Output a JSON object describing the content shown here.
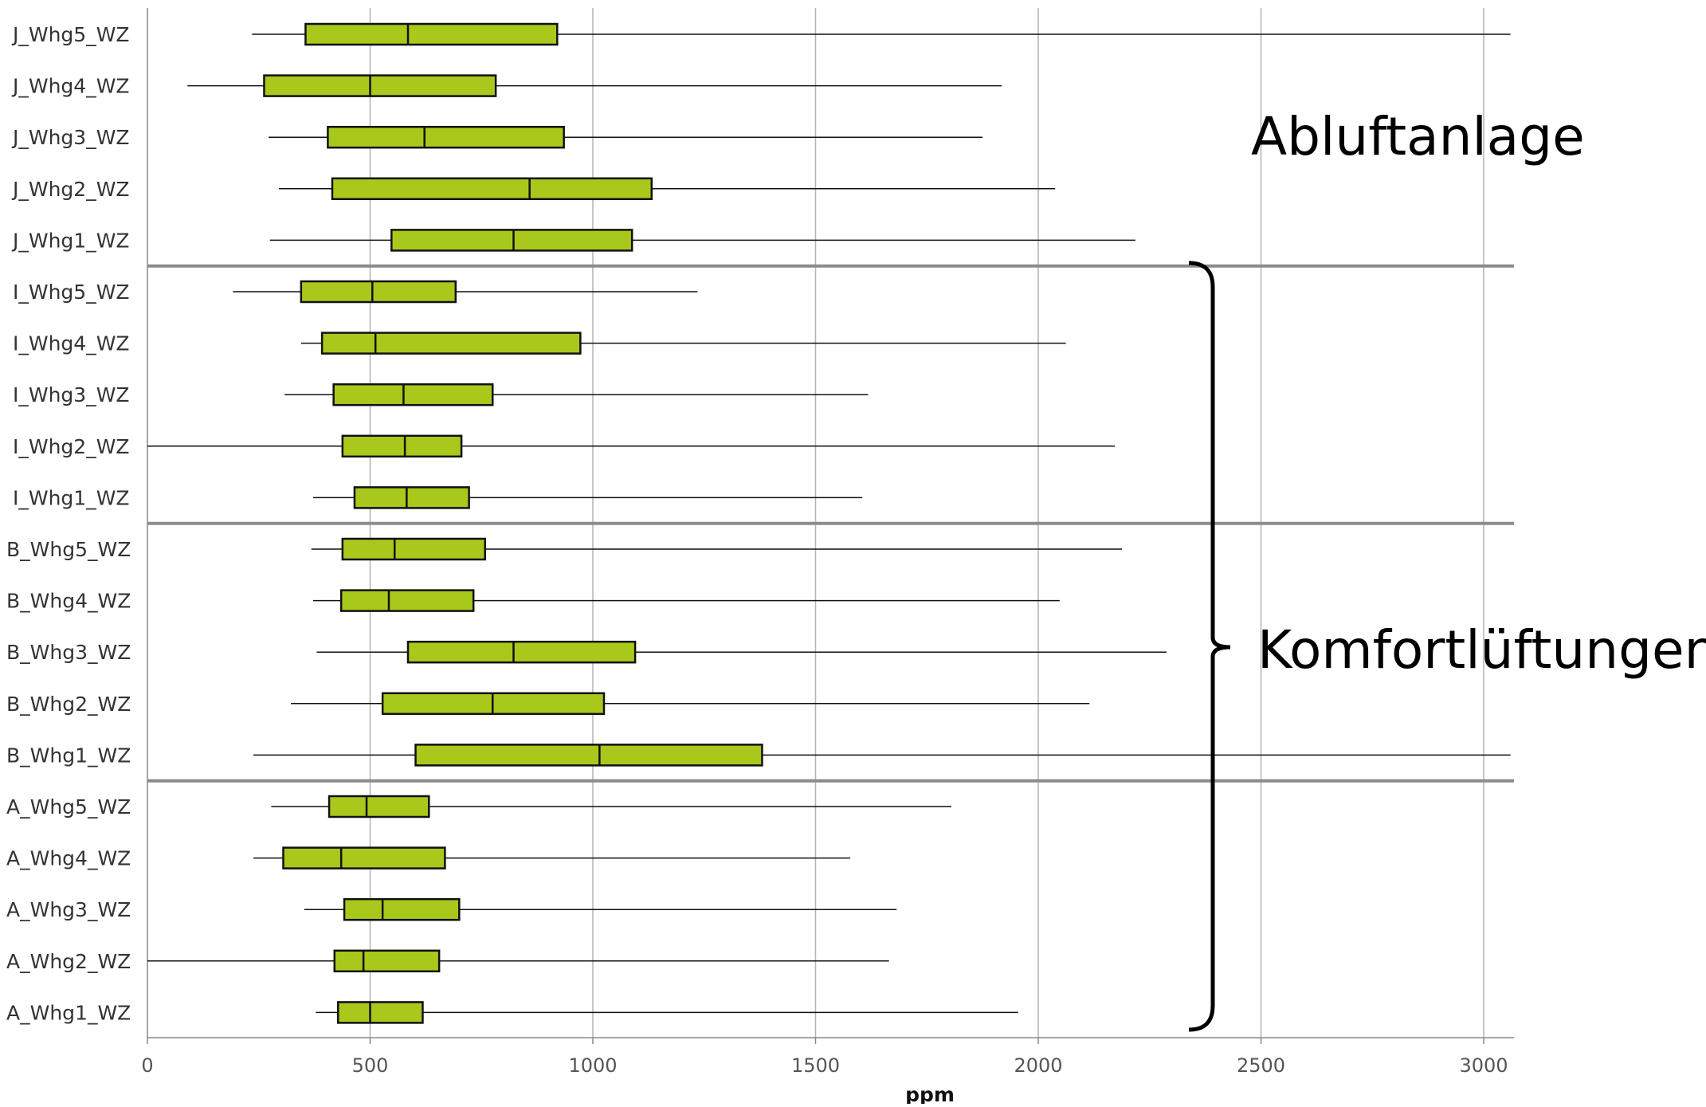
{
  "chart_data": {
    "type": "boxplot",
    "orientation": "horizontal",
    "xlabel": "ppm",
    "xlim": [
      0,
      3060
    ],
    "xticks": [
      0,
      500,
      1000,
      1500,
      2000,
      2500,
      3000
    ],
    "xtick_labels": [
      "0",
      "500",
      "1000",
      "1500",
      "2000",
      "2500",
      "3000"
    ],
    "grid": "vertical",
    "box_color": "#a8c81c",
    "categories": [
      {
        "label": "J_Whg5_WZ",
        "min": 235,
        "q1": 355,
        "median": 585,
        "q3": 920,
        "max": 3060
      },
      {
        "label": "J_Whg4_WZ",
        "min": 90,
        "q1": 262,
        "median": 500,
        "q3": 782,
        "max": 1918
      },
      {
        "label": "J_Whg3_WZ",
        "min": 272,
        "q1": 405,
        "median": 622,
        "q3": 935,
        "max": 1875
      },
      {
        "label": "J_Whg2_WZ",
        "min": 295,
        "q1": 415,
        "median": 858,
        "q3": 1132,
        "max": 2038
      },
      {
        "label": "J_Whg1_WZ",
        "min": 275,
        "q1": 548,
        "median": 822,
        "q3": 1088,
        "max": 2218
      },
      {
        "label": "I_Whg5_WZ",
        "min": 192,
        "q1": 345,
        "median": 505,
        "q3": 692,
        "max": 1235
      },
      {
        "label": "I_Whg4_WZ",
        "min": 345,
        "q1": 392,
        "median": 512,
        "q3": 972,
        "max": 2062
      },
      {
        "label": "I_Whg3_WZ",
        "min": 308,
        "q1": 418,
        "median": 575,
        "q3": 775,
        "max": 1618
      },
      {
        "label": "I_Whg2_WZ",
        "min": 0,
        "q1": 438,
        "median": 578,
        "q3": 705,
        "max": 2172
      },
      {
        "label": "I_Whg1_WZ",
        "min": 372,
        "q1": 465,
        "median": 582,
        "q3": 722,
        "max": 1605
      },
      {
        "label": "B_Whg5_WZ",
        "min": 368,
        "q1": 438,
        "median": 555,
        "q3": 758,
        "max": 2188
      },
      {
        "label": "B_Whg4_WZ",
        "min": 372,
        "q1": 435,
        "median": 542,
        "q3": 732,
        "max": 2048
      },
      {
        "label": "B_Whg3_WZ",
        "min": 380,
        "q1": 585,
        "median": 822,
        "q3": 1095,
        "max": 2288
      },
      {
        "label": "B_Whg2_WZ",
        "min": 322,
        "q1": 528,
        "median": 775,
        "q3": 1025,
        "max": 2115
      },
      {
        "label": "B_Whg1_WZ",
        "min": 238,
        "q1": 602,
        "median": 1015,
        "q3": 1380,
        "max": 3060
      },
      {
        "label": "A_Whg5_WZ",
        "min": 278,
        "q1": 408,
        "median": 492,
        "q3": 632,
        "max": 1805
      },
      {
        "label": "A_Whg4_WZ",
        "min": 238,
        "q1": 305,
        "median": 435,
        "q3": 668,
        "max": 1578
      },
      {
        "label": "A_Whg3_WZ",
        "min": 352,
        "q1": 442,
        "median": 528,
        "q3": 700,
        "max": 1682
      },
      {
        "label": "A_Whg2_WZ",
        "min": 0,
        "q1": 420,
        "median": 485,
        "q3": 655,
        "max": 1665
      },
      {
        "label": "A_Whg1_WZ",
        "min": 378,
        "q1": 428,
        "median": 500,
        "q3": 618,
        "max": 1955
      }
    ],
    "group_separators_after": [
      "J_Whg1_WZ",
      "I_Whg1_WZ",
      "B_Whg1_WZ"
    ],
    "annotations": {
      "abluftanlage": "Abluftanlage",
      "komfortlueftungen": "Komfortlüftungen"
    }
  }
}
